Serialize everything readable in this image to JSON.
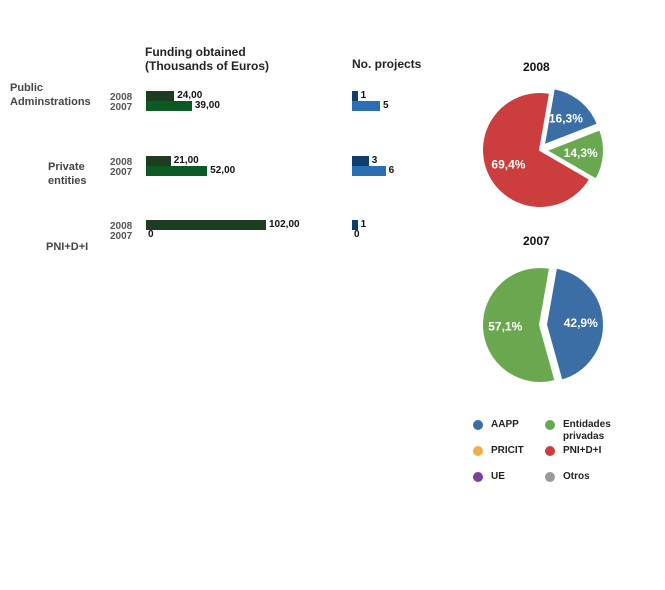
{
  "chart_data": [
    {
      "type": "bar",
      "orientation": "horizontal",
      "title": "Funding obtained\n(Thousands of Euros)",
      "categories": [
        "Public\nAdminstrations",
        "Private\nentities",
        "PNI+D+I"
      ],
      "series": [
        {
          "name": "2008",
          "values": [
            24.0,
            21.0,
            102.0
          ],
          "labels": [
            "24,00",
            "21,00",
            "102,00"
          ],
          "color": "#1d3d21"
        },
        {
          "name": "2007",
          "values": [
            39.0,
            52.0,
            0
          ],
          "labels": [
            "39,00",
            "52,00",
            "0"
          ],
          "color": "#0b5a24"
        }
      ]
    },
    {
      "type": "bar",
      "orientation": "horizontal",
      "title": "No. projects",
      "categories": [
        "Public\nAdminstrations",
        "Private\nentities",
        "PNI+D+I"
      ],
      "series": [
        {
          "name": "2008",
          "values": [
            1,
            3,
            1
          ],
          "labels": [
            "1",
            "3",
            "1"
          ],
          "color": "#0f3d6e"
        },
        {
          "name": "2007",
          "values": [
            5,
            6,
            0
          ],
          "labels": [
            "5",
            "6",
            "0"
          ],
          "color": "#2a6fb3"
        }
      ]
    },
    {
      "type": "pie",
      "title": "2008",
      "slices": [
        {
          "label": "AAPP",
          "value": 16.3,
          "text": "16,3%",
          "color": "#3a6ea5"
        },
        {
          "label": "Entidades privadas",
          "value": 14.3,
          "text": "14,3%",
          "color": "#6aa84f"
        },
        {
          "label": "PNI+D+I",
          "value": 69.4,
          "text": "69,4%",
          "color": "#cc3d3d"
        }
      ]
    },
    {
      "type": "pie",
      "title": "2007",
      "slices": [
        {
          "label": "AAPP",
          "value": 42.9,
          "text": "42,9%",
          "color": "#3a6ea5"
        },
        {
          "label": "Entidades privadas",
          "value": 57.1,
          "text": "57,1%",
          "color": "#6aa84f"
        }
      ]
    }
  ],
  "legend": [
    {
      "label": "AAPP",
      "color": "#3a6ea5"
    },
    {
      "label": "Entidades privadas",
      "color": "#6aa84f"
    },
    {
      "label": "PRICIT",
      "color": "#f0ad4e"
    },
    {
      "label": "PNI+D+I",
      "color": "#cc3d3d"
    },
    {
      "label": "UE",
      "color": "#7b3f9e"
    },
    {
      "label": "Otros",
      "color": "#999999"
    }
  ]
}
